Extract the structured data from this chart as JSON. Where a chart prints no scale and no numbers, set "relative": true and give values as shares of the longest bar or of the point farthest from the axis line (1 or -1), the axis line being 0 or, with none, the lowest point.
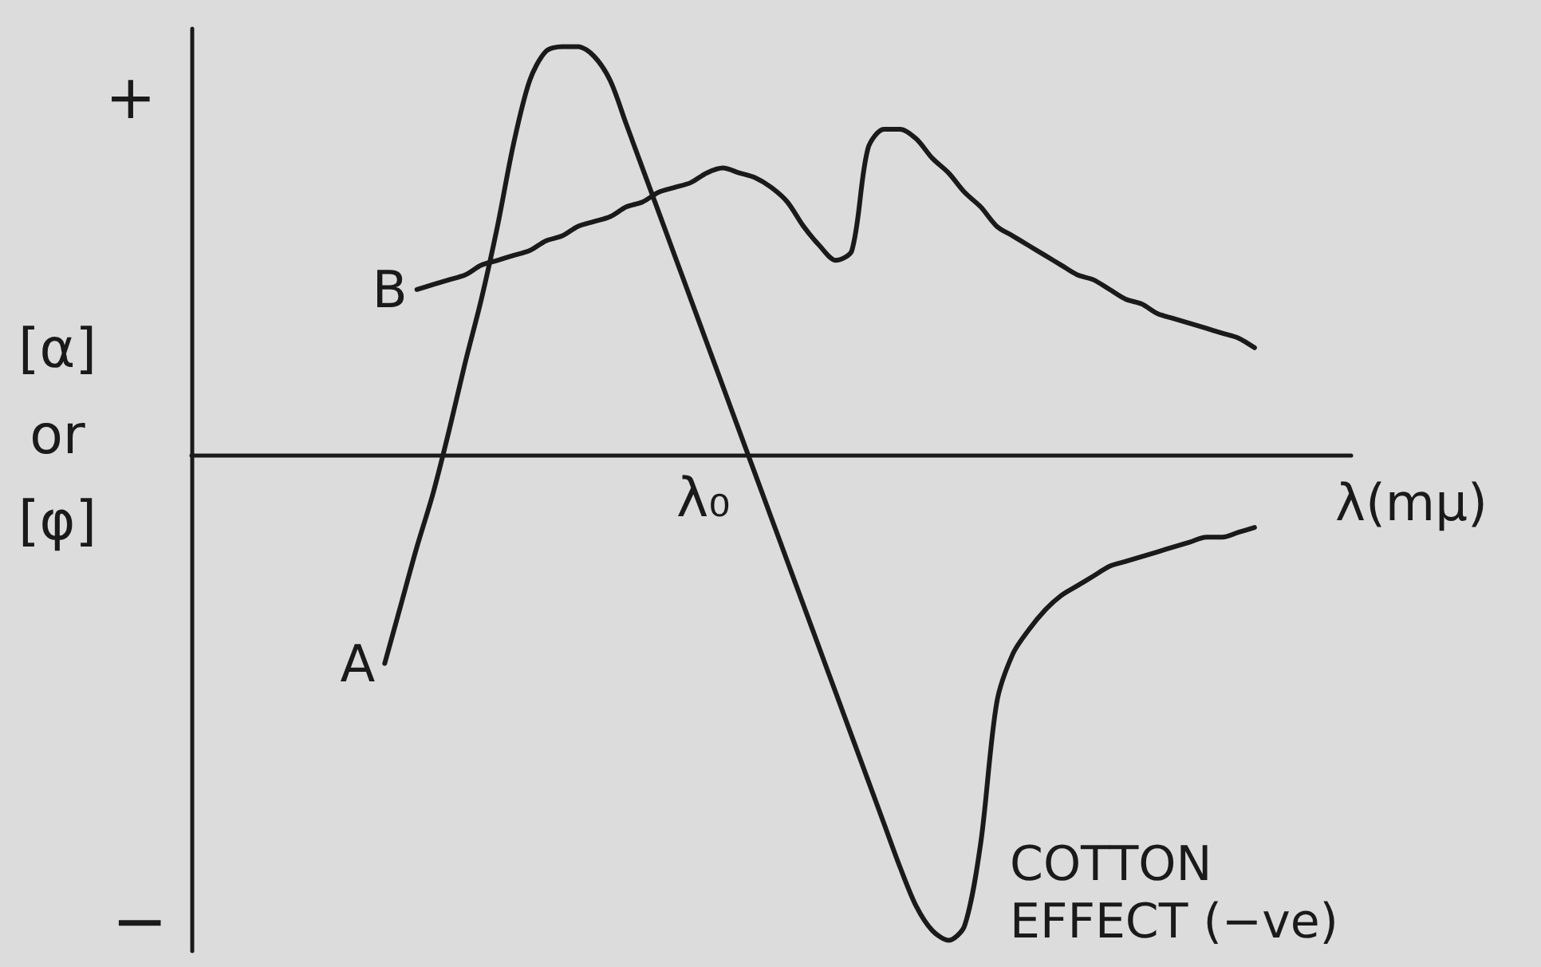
{
  "chart_data": {
    "type": "line",
    "xlabel": "λ(mμ)",
    "ylabel": "[α]\nor\n[φ]",
    "annotations": [
      "+",
      "−",
      "λ₀",
      "COTTON\nEFFECT (−ve)"
    ],
    "categories": [
      null,
      null,
      null,
      null,
      null,
      null,
      null,
      null,
      null,
      null,
      null,
      null,
      null,
      null,
      null,
      null,
      null,
      null,
      null,
      null,
      null,
      null,
      null,
      null,
      null,
      null,
      null,
      null,
      null,
      null,
      null,
      null,
      null,
      null,
      null,
      null,
      null,
      null,
      null,
      null,
      null,
      null,
      null,
      null,
      null,
      null,
      null,
      null,
      null,
      null,
      null,
      null,
      null,
      null,
      null,
      null,
      null,
      null,
      null,
      null,
      null,
      null,
      null,
      null,
      null,
      null,
      null,
      null,
      null,
      null,
      null,
      null,
      null
    ],
    "series": [
      {
        "name": "A",
        "color": "#1a1a1a",
        "values": [
          null,
          null,
          null,
          null,
          null,
          null,
          null,
          null,
          null,
          null,
          null,
          null,
          -0.43,
          -0.31,
          -0.19,
          -0.08,
          0.05,
          0.19,
          0.32,
          0.47,
          0.64,
          0.77,
          0.83,
          0.84,
          0.84,
          0.82,
          0.77,
          0.68,
          0.59,
          0.5,
          0.41,
          0.32,
          0.23,
          0.14,
          0.05,
          -0.04,
          -0.13,
          -0.22,
          -0.31,
          -0.4,
          -0.49,
          -0.58,
          -0.67,
          -0.76,
          -0.85,
          -0.93,
          -0.98,
          -1,
          -0.97,
          -0.8,
          -0.51,
          -0.41,
          -0.36,
          -0.32,
          -0.29,
          -0.27,
          -0.25,
          -0.23,
          -0.22,
          -0.21,
          -0.2,
          -0.19,
          -0.18,
          -0.17,
          -0.17,
          -0.16,
          -0.15,
          null,
          null,
          null,
          null,
          null,
          null
        ]
      },
      {
        "name": "B",
        "color": "#1a1a1a",
        "values": [
          null,
          null,
          null,
          null,
          null,
          null,
          null,
          null,
          null,
          null,
          null,
          null,
          null,
          null,
          0.34,
          0.35,
          0.36,
          0.37,
          0.39,
          0.4,
          0.41,
          0.42,
          0.44,
          0.45,
          0.47,
          0.48,
          0.49,
          0.51,
          0.52,
          0.54,
          0.55,
          0.56,
          0.58,
          0.59,
          0.58,
          0.57,
          0.55,
          0.52,
          0.47,
          0.43,
          0.4,
          0.42,
          0.63,
          0.67,
          0.67,
          0.65,
          0.61,
          0.58,
          0.54,
          0.51,
          0.47,
          0.45,
          0.43,
          0.41,
          0.39,
          0.37,
          0.36,
          0.34,
          0.32,
          0.31,
          0.29,
          0.28,
          0.27,
          0.26,
          0.25,
          0.24,
          0.22,
          null,
          null,
          null,
          null,
          null,
          null
        ]
      }
    ],
    "relative": true,
    "marker": "none",
    "line_style": "solid"
  }
}
